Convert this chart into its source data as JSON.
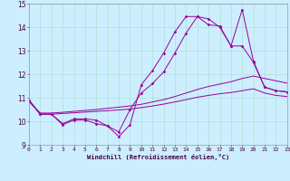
{
  "xlabel": "Windchill (Refroidissement éolien,°C)",
  "background_color": "#cceeff",
  "line_color": "#990099",
  "xlim": [
    0,
    23
  ],
  "ylim": [
    9,
    15
  ],
  "xticks": [
    0,
    1,
    2,
    3,
    4,
    5,
    6,
    7,
    8,
    9,
    10,
    11,
    12,
    13,
    14,
    15,
    16,
    17,
    18,
    19,
    20,
    21,
    22,
    23
  ],
  "yticks": [
    9,
    10,
    11,
    12,
    13,
    14,
    15
  ],
  "line1_x": [
    0,
    1,
    2,
    3,
    4,
    5,
    6,
    7,
    8,
    9,
    10,
    11,
    12,
    13,
    14,
    15,
    16,
    17,
    18,
    19,
    20,
    21,
    22,
    23
  ],
  "line1_y": [
    10.9,
    10.3,
    10.3,
    9.85,
    10.05,
    10.05,
    9.9,
    9.8,
    9.35,
    9.85,
    11.55,
    12.15,
    12.9,
    13.8,
    14.45,
    14.45,
    14.1,
    14.05,
    13.2,
    14.75,
    12.55,
    11.45,
    11.3,
    11.25
  ],
  "line2_x": [
    0,
    1,
    2,
    3,
    4,
    5,
    6,
    7,
    8,
    9,
    10,
    11,
    12,
    13,
    14,
    15,
    16,
    17,
    18,
    19,
    20,
    21,
    22,
    23
  ],
  "line2_y": [
    10.9,
    10.3,
    10.3,
    9.9,
    10.1,
    10.1,
    10.05,
    9.8,
    9.55,
    10.5,
    11.2,
    11.6,
    12.1,
    12.9,
    13.75,
    14.45,
    14.35,
    14.0,
    13.2,
    13.2,
    12.5,
    11.45,
    11.3,
    11.25
  ],
  "line3_x": [
    0,
    1,
    2,
    3,
    4,
    5,
    6,
    7,
    8,
    9,
    10,
    11,
    12,
    13,
    14,
    15,
    16,
    17,
    18,
    19,
    20,
    21,
    22,
    23
  ],
  "line3_y": [
    10.85,
    10.35,
    10.35,
    10.38,
    10.42,
    10.46,
    10.5,
    10.55,
    10.6,
    10.65,
    10.72,
    10.82,
    10.92,
    11.05,
    11.2,
    11.35,
    11.48,
    11.58,
    11.68,
    11.82,
    11.92,
    11.82,
    11.72,
    11.62
  ],
  "line4_x": [
    0,
    1,
    2,
    3,
    4,
    5,
    6,
    7,
    8,
    9,
    10,
    11,
    12,
    13,
    14,
    15,
    16,
    17,
    18,
    19,
    20,
    21,
    22,
    23
  ],
  "line4_y": [
    10.85,
    10.3,
    10.3,
    10.33,
    10.36,
    10.39,
    10.42,
    10.45,
    10.48,
    10.52,
    10.58,
    10.65,
    10.73,
    10.82,
    10.92,
    11.02,
    11.1,
    11.17,
    11.22,
    11.3,
    11.38,
    11.2,
    11.1,
    11.05
  ]
}
